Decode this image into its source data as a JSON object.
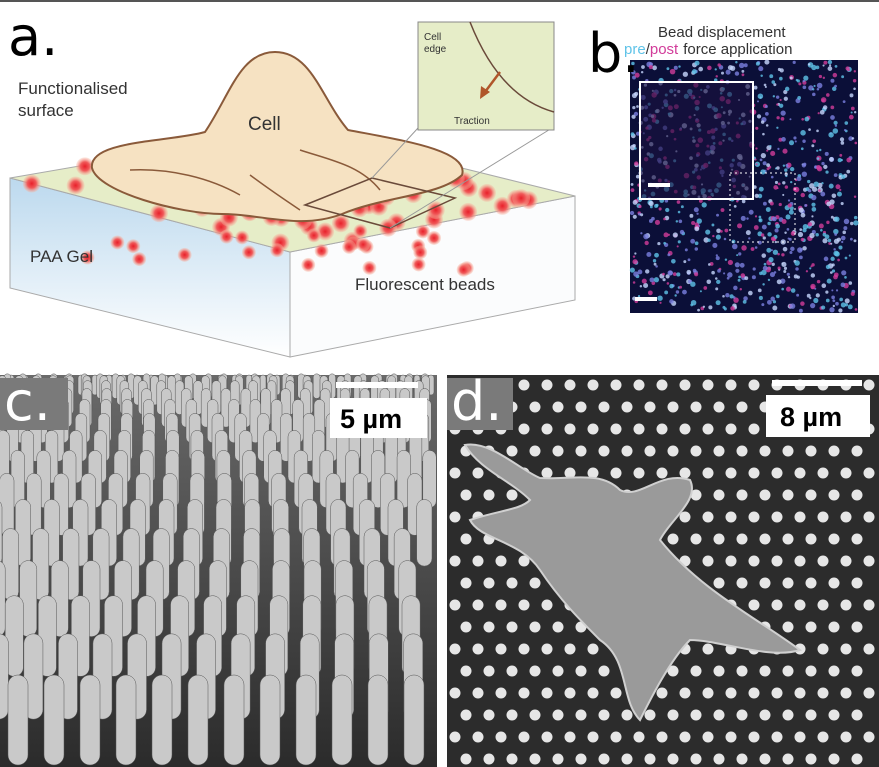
{
  "panel_a": {
    "label": "a.",
    "surface_label": [
      "Functionalised",
      "surface"
    ],
    "cell_label": "Cell",
    "inset": {
      "edge_label": [
        "Cell",
        "edge"
      ],
      "traction_label": "Traction"
    },
    "gel_label": "PAA Gel",
    "beads_label": "Fluorescent beads"
  },
  "panel_b": {
    "label": "b.",
    "title": "Bead displacement",
    "legend": [
      "pre",
      "/",
      "post",
      "force application"
    ]
  },
  "panel_c": {
    "label": "c.",
    "scale_label": "5 µm"
  },
  "panel_d": {
    "label": "d.",
    "scale_label": "8 µm"
  }
}
